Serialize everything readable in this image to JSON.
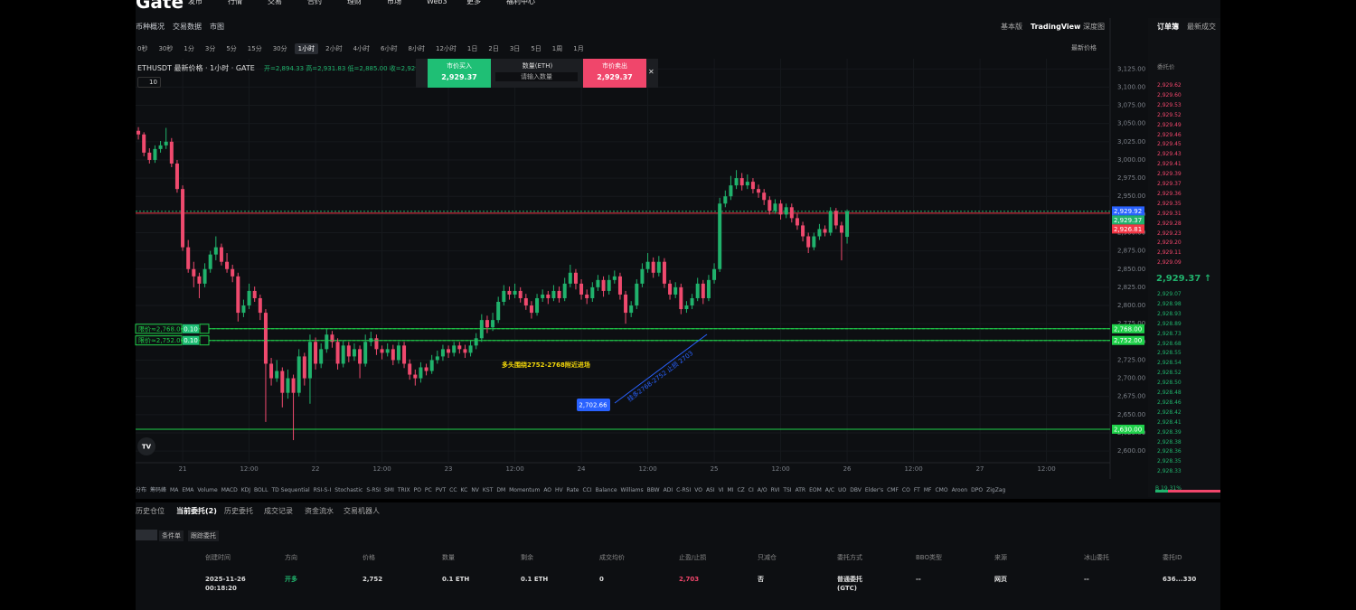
{
  "header": {
    "logo": "Gate",
    "nav": [
      "发币",
      "行情",
      "交易",
      "合约",
      "理财",
      "市场",
      "Web3",
      "更多",
      "福利中心"
    ],
    "tabs": [
      "币种概况",
      "交易数据",
      "市图"
    ],
    "views": [
      "基本版",
      "TradingView",
      "深度图"
    ]
  },
  "toolbar": {
    "intervals": [
      "0秒",
      "30秒",
      "1分",
      "3分",
      "5分",
      "15分",
      "30分",
      "1小时",
      "2小时",
      "4小时",
      "6小时",
      "8小时",
      "12小时",
      "1日",
      "2日",
      "3日",
      "5日",
      "1周",
      "1月"
    ],
    "price_type": "最新价格"
  },
  "trade_widget": {
    "buy_label": "市价买入",
    "buy_price": "2,929.37",
    "qty_label": "数量(ETH)",
    "qty_placeholder": "请输入数量",
    "sell_label": "市价卖出",
    "sell_price": "2,929.37"
  },
  "chart_data": {
    "type": "candlestick",
    "symbol": "ETHUSDT 最新价格 · 1小时 · GATE",
    "ohlc_label": "开=2,894.33 高=2,931.83 低=2,885.00 收=2,929...",
    "indicator_count": "10",
    "up_color": "#20b26c",
    "down_color": "#ef4a6e",
    "grid": true,
    "ohlc": [
      [
        3040,
        3045,
        3028,
        3035
      ],
      [
        3035,
        3038,
        3005,
        3010
      ],
      [
        3010,
        3016,
        2995,
        3000
      ],
      [
        3000,
        3020,
        2996,
        3015
      ],
      [
        3015,
        3026,
        3010,
        3020
      ],
      [
        3020,
        3044,
        3015,
        3025
      ],
      [
        3025,
        3030,
        2990,
        2995
      ],
      [
        2995,
        3000,
        2955,
        2960
      ],
      [
        2960,
        2965,
        2875,
        2880
      ],
      [
        2880,
        2890,
        2845,
        2850
      ],
      [
        2850,
        2860,
        2825,
        2840
      ],
      [
        2840,
        2845,
        2810,
        2830
      ],
      [
        2830,
        2858,
        2825,
        2850
      ],
      [
        2850,
        2875,
        2845,
        2870
      ],
      [
        2870,
        2895,
        2862,
        2880
      ],
      [
        2880,
        2885,
        2855,
        2860
      ],
      [
        2860,
        2872,
        2845,
        2850
      ],
      [
        2850,
        2856,
        2832,
        2840
      ],
      [
        2840,
        2845,
        2778,
        2790
      ],
      [
        2790,
        2808,
        2784,
        2800
      ],
      [
        2800,
        2830,
        2795,
        2820
      ],
      [
        2820,
        2826,
        2805,
        2810
      ],
      [
        2810,
        2815,
        2780,
        2790
      ],
      [
        2790,
        2795,
        2640,
        2720
      ],
      [
        2720,
        2728,
        2690,
        2700
      ],
      [
        2700,
        2725,
        2695,
        2710
      ],
      [
        2710,
        2715,
        2660,
        2680
      ],
      [
        2680,
        2712,
        2672,
        2700
      ],
      [
        2700,
        2705,
        2615,
        2680
      ],
      [
        2680,
        2740,
        2675,
        2730
      ],
      [
        2730,
        2735,
        2690,
        2700
      ],
      [
        2700,
        2760,
        2665,
        2750
      ],
      [
        2750,
        2756,
        2712,
        2720
      ],
      [
        2720,
        2748,
        2714,
        2740
      ],
      [
        2740,
        2768,
        2735,
        2760
      ],
      [
        2760,
        2765,
        2742,
        2750
      ],
      [
        2750,
        2755,
        2712,
        2720
      ],
      [
        2720,
        2752,
        2715,
        2745
      ],
      [
        2745,
        2750,
        2722,
        2730
      ],
      [
        2730,
        2748,
        2724,
        2740
      ],
      [
        2740,
        2745,
        2700,
        2720
      ],
      [
        2720,
        2760,
        2716,
        2750
      ],
      [
        2750,
        2764,
        2744,
        2755
      ],
      [
        2755,
        2760,
        2732,
        2740
      ],
      [
        2740,
        2745,
        2726,
        2735
      ],
      [
        2735,
        2748,
        2730,
        2740
      ],
      [
        2740,
        2746,
        2718,
        2725
      ],
      [
        2725,
        2750,
        2720,
        2745
      ],
      [
        2745,
        2750,
        2714,
        2720
      ],
      [
        2720,
        2726,
        2698,
        2705
      ],
      [
        2705,
        2712,
        2690,
        2700
      ],
      [
        2700,
        2722,
        2694,
        2715
      ],
      [
        2715,
        2720,
        2704,
        2710
      ],
      [
        2710,
        2732,
        2706,
        2725
      ],
      [
        2725,
        2738,
        2720,
        2730
      ],
      [
        2730,
        2746,
        2724,
        2740
      ],
      [
        2740,
        2745,
        2728,
        2735
      ],
      [
        2735,
        2750,
        2730,
        2745
      ],
      [
        2745,
        2750,
        2734,
        2740
      ],
      [
        2740,
        2746,
        2728,
        2735
      ],
      [
        2735,
        2752,
        2730,
        2745
      ],
      [
        2745,
        2762,
        2740,
        2755
      ],
      [
        2755,
        2788,
        2750,
        2780
      ],
      [
        2780,
        2786,
        2762,
        2770
      ],
      [
        2770,
        2790,
        2765,
        2780
      ],
      [
        2780,
        2812,
        2776,
        2805
      ],
      [
        2805,
        2828,
        2800,
        2820
      ],
      [
        2820,
        2826,
        2808,
        2815
      ],
      [
        2815,
        2830,
        2810,
        2820
      ],
      [
        2820,
        2825,
        2804,
        2810
      ],
      [
        2810,
        2816,
        2794,
        2800
      ],
      [
        2800,
        2806,
        2782,
        2790
      ],
      [
        2790,
        2816,
        2786,
        2810
      ],
      [
        2810,
        2822,
        2805,
        2815
      ],
      [
        2815,
        2820,
        2802,
        2810
      ],
      [
        2810,
        2828,
        2806,
        2820
      ],
      [
        2820,
        2826,
        2804,
        2810
      ],
      [
        2810,
        2838,
        2806,
        2830
      ],
      [
        2830,
        2856,
        2825,
        2845
      ],
      [
        2845,
        2850,
        2822,
        2830
      ],
      [
        2830,
        2836,
        2808,
        2815
      ],
      [
        2815,
        2822,
        2802,
        2810
      ],
      [
        2810,
        2832,
        2805,
        2825
      ],
      [
        2825,
        2842,
        2820,
        2835
      ],
      [
        2835,
        2840,
        2812,
        2820
      ],
      [
        2820,
        2842,
        2815,
        2835
      ],
      [
        2835,
        2848,
        2830,
        2840
      ],
      [
        2840,
        2845,
        2808,
        2815
      ],
      [
        2815,
        2820,
        2775,
        2790
      ],
      [
        2790,
        2806,
        2784,
        2800
      ],
      [
        2800,
        2836,
        2795,
        2830
      ],
      [
        2830,
        2858,
        2825,
        2850
      ],
      [
        2850,
        2872,
        2845,
        2860
      ],
      [
        2860,
        2866,
        2838,
        2845
      ],
      [
        2845,
        2868,
        2840,
        2860
      ],
      [
        2860,
        2865,
        2824,
        2830
      ],
      [
        2830,
        2835,
        2808,
        2815
      ],
      [
        2815,
        2832,
        2810,
        2825
      ],
      [
        2825,
        2830,
        2788,
        2795
      ],
      [
        2795,
        2806,
        2790,
        2800
      ],
      [
        2800,
        2816,
        2795,
        2810
      ],
      [
        2810,
        2838,
        2806,
        2830
      ],
      [
        2830,
        2835,
        2802,
        2810
      ],
      [
        2810,
        2842,
        2806,
        2835
      ],
      [
        2835,
        2858,
        2830,
        2850
      ],
      [
        2850,
        2948,
        2846,
        2940
      ],
      [
        2940,
        2958,
        2935,
        2950
      ],
      [
        2950,
        2978,
        2945,
        2965
      ],
      [
        2965,
        2986,
        2960,
        2975
      ],
      [
        2975,
        2982,
        2958,
        2965
      ],
      [
        2965,
        2980,
        2960,
        2970
      ],
      [
        2970,
        2975,
        2954,
        2960
      ],
      [
        2960,
        2966,
        2948,
        2955
      ],
      [
        2955,
        2960,
        2938,
        2945
      ],
      [
        2945,
        2950,
        2925,
        2930
      ],
      [
        2930,
        2946,
        2926,
        2940
      ],
      [
        2940,
        2945,
        2918,
        2925
      ],
      [
        2925,
        2940,
        2920,
        2935
      ],
      [
        2935,
        2940,
        2914,
        2920
      ],
      [
        2920,
        2926,
        2904,
        2910
      ],
      [
        2910,
        2915,
        2888,
        2895
      ],
      [
        2895,
        2900,
        2872,
        2880
      ],
      [
        2880,
        2900,
        2876,
        2895
      ],
      [
        2895,
        2912,
        2890,
        2905
      ],
      [
        2905,
        2910,
        2895,
        2900
      ],
      [
        2900,
        2935,
        2896,
        2930
      ],
      [
        2930,
        2934,
        2905,
        2910
      ],
      [
        2910,
        2915,
        2862,
        2900
      ],
      [
        2894.33,
        2931.83,
        2885,
        2929.37
      ]
    ],
    "xlim": [
      -0.5,
      175.5
    ],
    "xticks": [
      {
        "value": 8,
        "label": "21"
      },
      {
        "value": 20,
        "label": "12:00"
      },
      {
        "value": 32,
        "label": "22"
      },
      {
        "value": 44,
        "label": "12:00"
      },
      {
        "value": 56,
        "label": "23"
      },
      {
        "value": 68,
        "label": "12:00"
      },
      {
        "value": 80,
        "label": "24"
      },
      {
        "value": 92,
        "label": "12:00"
      },
      {
        "value": 104,
        "label": "25"
      },
      {
        "value": 116,
        "label": "12:00"
      },
      {
        "value": 128,
        "label": "26"
      },
      {
        "value": 140,
        "label": "12:00"
      },
      {
        "value": 152,
        "label": "27"
      },
      {
        "value": 164,
        "label": "12:00"
      }
    ],
    "ylim": [
      2584,
      3139
    ],
    "yticks": [
      {
        "value": 3125,
        "label": "3,125.00"
      },
      {
        "value": 3100,
        "label": "3,100.00"
      },
      {
        "value": 3075,
        "label": "3,075.00"
      },
      {
        "value": 3050,
        "label": "3,050.00"
      },
      {
        "value": 3025,
        "label": "3,025.00"
      },
      {
        "value": 3000,
        "label": "3,000.00"
      },
      {
        "value": 2975,
        "label": "2,975.00"
      },
      {
        "value": 2950,
        "label": "2,950.00"
      },
      {
        "value": 2925,
        "label": "2,925.00"
      },
      {
        "value": 2900,
        "label": "2,900.00"
      },
      {
        "value": 2875,
        "label": "2,875.00"
      },
      {
        "value": 2850,
        "label": "2,850.00"
      },
      {
        "value": 2825,
        "label": "2,825.00"
      },
      {
        "value": 2800,
        "label": "2,800.00"
      },
      {
        "value": 2775,
        "label": "2,775.00"
      },
      {
        "value": 2750,
        "label": "2,750.00"
      },
      {
        "value": 2725,
        "label": "2,725.00"
      },
      {
        "value": 2700,
        "label": "2,700.00"
      },
      {
        "value": 2675,
        "label": "2,675.00"
      },
      {
        "value": 2650,
        "label": "2,650.00"
      },
      {
        "value": 2625,
        "label": "2,625.00"
      },
      {
        "value": 2600,
        "label": "2,600.00"
      }
    ],
    "price_lines": [
      {
        "value": 2929.37,
        "color": "#20b26c",
        "dash": true
      },
      {
        "value": 2926.81,
        "color": "#f23645",
        "dash": false
      },
      {
        "value": 2768,
        "color": "#1fd14a",
        "dash": false
      },
      {
        "value": 2752,
        "color": "#1fd14a",
        "dash": false
      },
      {
        "value": 2630,
        "color": "#1fd14a",
        "dash": false
      }
    ],
    "order_lines": [
      {
        "label": "限价≈2,768.00",
        "qty": "0.10",
        "value": 2768
      },
      {
        "label": "限价≈2,752.00",
        "qty": "0.10",
        "value": 2752
      }
    ],
    "axis_tags": [
      {
        "value": 2929.92,
        "label": "2,929.92",
        "color": "#2962ff"
      },
      {
        "value": 2929.37,
        "label": "2,929.37",
        "color": "#20b26c"
      },
      {
        "value": 2926.81,
        "label": "2,926.81",
        "color": "#f23645"
      },
      {
        "value": 2768,
        "label": "2,768.00",
        "color": "#1fd14a"
      },
      {
        "value": 2752,
        "label": "2,752.00",
        "color": "#1fd14a"
      },
      {
        "value": 2630,
        "label": "2,630.00",
        "color": "#1fd14a"
      }
    ],
    "annotation": "多头围绕2752-2768附近进场",
    "trend_label": "挂多2768-2752 止损 2703",
    "marker_label": "2,702.66"
  },
  "indicators": [
    "分布",
    "筹码峰",
    "MA",
    "EMA",
    "Volume",
    "MACD",
    "KDJ",
    "BOLL",
    "TD Sequential",
    "RSI-S-I",
    "Stochastic",
    "S-RSI",
    "SMI",
    "TRIX",
    "PO",
    "PC",
    "PVT",
    "CC",
    "KC",
    "NV",
    "KST",
    "DM",
    "Momentum",
    "AO",
    "HV",
    "Rate",
    "CCI",
    "Balance",
    "Williams",
    "BBW",
    "ADI",
    "C-RSI",
    "VO",
    "ASI",
    "VI",
    "MI",
    "CZ",
    "CI",
    "A/O",
    "RVI",
    "TSI",
    "ATR",
    "EOM",
    "A/C",
    "UO",
    "DBV",
    "Elder's",
    "CMF",
    "CO",
    "FT",
    "MF",
    "CMO",
    "Aroon",
    "DPO",
    "ZigZag"
  ],
  "orders": {
    "tabs": [
      "历史仓位",
      "当前委托(2)",
      "历史委托",
      "成交记录",
      "资金流水",
      "交易机器人"
    ],
    "filters": [
      "条件单",
      "跟踪委托"
    ],
    "columns": [
      "创建时间",
      "方向",
      "价格",
      "数量",
      "剩余",
      "成交均价",
      "止盈/止损",
      "只减仓",
      "委托方式",
      "BBO类型",
      "来源",
      "冰山委托",
      "委托ID"
    ],
    "rows": [
      [
        "2025-11-26 00:18:20",
        "开多",
        "2,752",
        "0.1 ETH",
        "0.1 ETH",
        "0",
        "2,703",
        "否",
        "普通委托 (GTC)",
        "--",
        "网页",
        "--",
        "636...330"
      ]
    ]
  },
  "order_book": {
    "tabs": [
      "订单簿",
      "最新成交"
    ],
    "price_header": "委托价",
    "asks": [
      "2,929.62",
      "2,929.60",
      "2,929.53",
      "2,929.52",
      "2,929.49",
      "2,929.46",
      "2,929.45",
      "2,929.43",
      "2,929.41",
      "2,929.39",
      "2,929.37",
      "2,929.36",
      "2,929.35",
      "2,929.31",
      "2,929.28",
      "2,929.23",
      "2,929.20",
      "2,929.11",
      "2,929.09"
    ],
    "last_price": "2,929.37 ↑",
    "bids": [
      "2,929.07",
      "2,928.98",
      "2,928.93",
      "2,928.89",
      "2,928.73",
      "2,928.68",
      "2,928.55",
      "2,928.54",
      "2,928.52",
      "2,928.50",
      "2,928.48",
      "2,928.46",
      "2,928.42",
      "2,928.41",
      "2,928.39",
      "2,928.38",
      "2,928.36",
      "2,928.35",
      "2,928.33"
    ],
    "buy_ratio": "B 19.31%"
  }
}
